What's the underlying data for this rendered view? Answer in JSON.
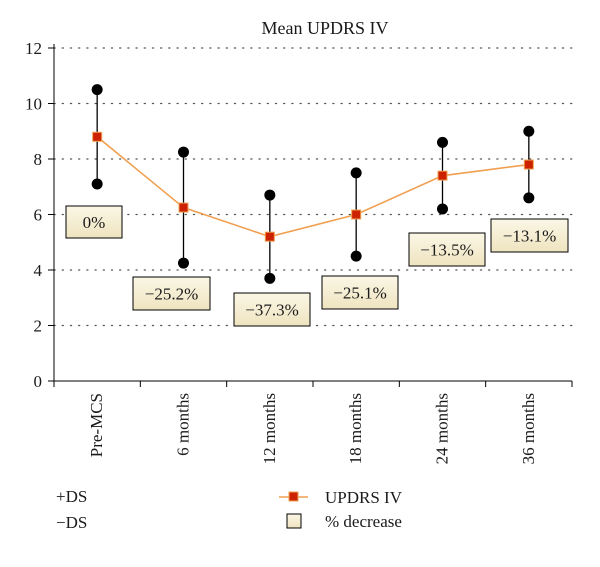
{
  "chart_data": {
    "type": "line",
    "title": "Mean UPDRS IV",
    "xlabel": "",
    "ylabel": "",
    "ylim": [
      0,
      12
    ],
    "yticks": [
      "0",
      "2",
      "4",
      "6",
      "8",
      "10",
      "12"
    ],
    "categories": [
      "Pre-MCS",
      "6 months",
      "12 months",
      "18 months",
      "24 months",
      "36 months"
    ],
    "series": [
      {
        "name": "UPDRS IV",
        "values": [
          8.8,
          6.25,
          5.2,
          6.0,
          7.4,
          7.8
        ]
      }
    ],
    "upper": [
      10.5,
      8.25,
      6.7,
      7.5,
      8.6,
      9.0
    ],
    "lower": [
      7.1,
      4.25,
      3.7,
      4.5,
      6.2,
      6.6
    ],
    "pct_labels": [
      "0%",
      "−25.2%",
      "−37.3%",
      "−25.1%",
      "−13.5%",
      "−13.1%"
    ],
    "grid": true,
    "legend": {
      "plus_ds": "+DS",
      "minus_ds": "−DS",
      "series": "UPDRS IV",
      "box": "% decrease"
    },
    "colors": {
      "line": "#f0a050",
      "marker": "#cc2200",
      "errorbar": "#000000",
      "box_fill": "#f5eed2",
      "box_border": "#000000"
    }
  }
}
